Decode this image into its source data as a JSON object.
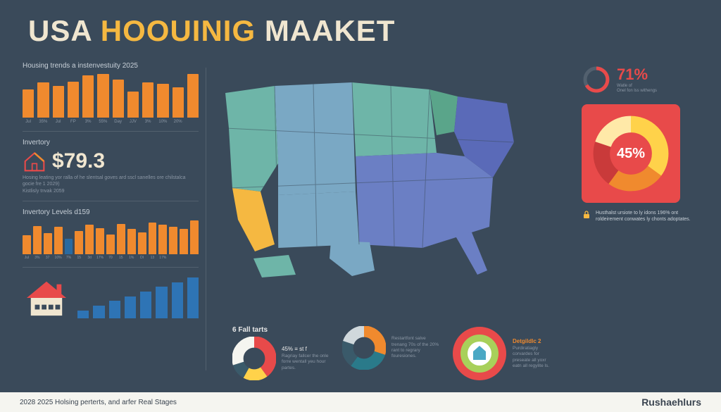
{
  "title": {
    "w1": "USA",
    "w2": "HOOUINIG",
    "w3": "MAAKET"
  },
  "colors": {
    "bg": "#3a4a5a",
    "orange": "#f08a2e",
    "yellow": "#f5b841",
    "cream": "#f0e6d0",
    "red": "#e84a4a",
    "blue1": "#6eb5a8",
    "blue2": "#7aa8c4",
    "blue3": "#6b7fc4",
    "blue4": "#5a6ab8"
  },
  "chart1": {
    "label": "Housing trends a instenvestuity 2025",
    "type": "bar",
    "bar_color": "#f08a2e",
    "values": [
      48,
      60,
      55,
      62,
      72,
      75,
      65,
      45,
      60,
      58,
      52,
      75
    ],
    "x": [
      "Jul",
      "35%",
      "Jul",
      "FP",
      "3%",
      "55%",
      "Day",
      "JJV",
      "3%",
      "10%",
      "20%",
      ""
    ]
  },
  "inventory": {
    "label": "Invertory",
    "side_label": "Kistlisly tnvak 2059",
    "stat": "$79.3",
    "desc": "Hosing leating yor ralla of he slentsal goves ard sscl sanelles ore chilstalca gocie fre 1 2029)"
  },
  "chart2": {
    "label": "Invertory Levels d159",
    "type": "bar",
    "values": [
      36,
      54,
      40,
      52,
      30,
      44,
      56,
      50,
      38,
      58,
      48,
      42,
      60,
      56,
      52,
      48,
      64
    ],
    "colors": [
      "o",
      "o",
      "o",
      "o",
      "b",
      "o",
      "o",
      "o",
      "o",
      "o",
      "o",
      "o",
      "o",
      "o",
      "o",
      "o",
      "o"
    ],
    "x": [
      "Jul",
      "3%",
      "37",
      "10%",
      "7%",
      "15",
      "3d",
      "17%",
      "70",
      "15",
      "1%",
      "DI",
      "13",
      "17%",
      "",
      "",
      ""
    ]
  },
  "ramp": {
    "type": "bar",
    "bar_color": "#2e74b5",
    "values": [
      14,
      22,
      30,
      38,
      46,
      54,
      62,
      70
    ]
  },
  "stat71": {
    "value": "71%",
    "sub": "Watle of",
    "desc": "Onel fon lss withengs"
  },
  "donut45": {
    "value": "45%",
    "segments": [
      {
        "color": "#ffd24a",
        "pct": 35
      },
      {
        "color": "#f08a2e",
        "pct": 25
      },
      {
        "color": "#c93a3a",
        "pct": 20
      },
      {
        "color": "#ffe9a8",
        "pct": 20
      }
    ],
    "bg": "#e84a4a"
  },
  "lock_note": "Husthalst ursiote to ly idons 196% ont roldeirement conwates ly chonts adoptates.",
  "bottom": {
    "card1": {
      "title": "6 Fall tarts",
      "sub": "45% ≡ st f",
      "text": "Ragriay fallcer the onle forre wentall yeu hour partes.",
      "donut": [
        {
          "color": "#e84a4a",
          "pct": 40
        },
        {
          "color": "#ffd24a",
          "pct": 18
        },
        {
          "color": "#3a5a6a",
          "pct": 12
        },
        {
          "color": "#f5f5f0",
          "pct": 30
        }
      ]
    },
    "card2": {
      "text": "Restartfont salve trenang 70s of the 20% rant to regrary fouresiones.",
      "donut": [
        {
          "color": "#f08a2e",
          "pct": 30
        },
        {
          "color": "#2a7a8a",
          "pct": 30
        },
        {
          "color": "#3a5a6a",
          "pct": 20
        },
        {
          "color": "#d0d8dc",
          "pct": 20
        }
      ]
    },
    "card3": {
      "title": "Detgildlc 2",
      "text": "Purdiratiagly corvardes for preseate all yoxr eatn all regylite ls.",
      "badge_colors": {
        "outer": "#e84a4a",
        "mid": "#a8d05a",
        "inner": "#ffffff",
        "icon": "#4aa8c4"
      }
    }
  },
  "footer": {
    "left": "2028 2025 Holsing perterts, and arfer Real Stages",
    "brand": "Rushaehlurs"
  }
}
